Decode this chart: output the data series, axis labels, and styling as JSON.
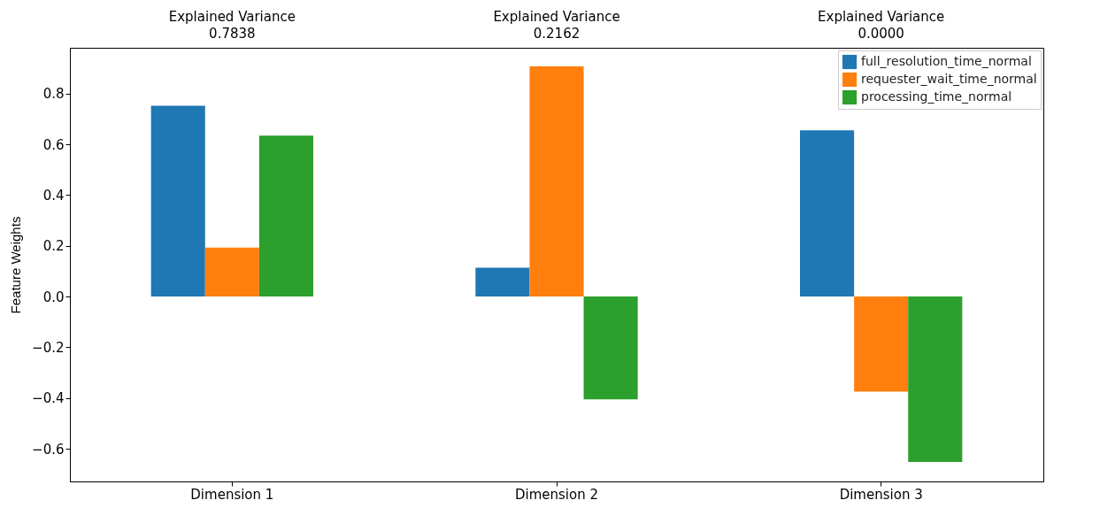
{
  "chart_data": {
    "type": "bar",
    "ylabel": "Feature Weights",
    "categories": [
      "Dimension 1",
      "Dimension 2",
      "Dimension 3"
    ],
    "series": [
      {
        "name": "full_resolution_time_normal",
        "color": "#1f77b4",
        "values": [
          0.752,
          0.114,
          0.656
        ]
      },
      {
        "name": "requester_wait_time_normal",
        "color": "#ff7f0e",
        "values": [
          0.193,
          0.908,
          -0.375
        ]
      },
      {
        "name": "processing_time_normal",
        "color": "#2ca02c",
        "values": [
          0.635,
          -0.405,
          -0.652
        ]
      }
    ],
    "ylim": [
      -0.729,
      0.981
    ],
    "yticks": [
      -0.6,
      -0.4,
      -0.2,
      {
        "value": 0,
        "label": "0.0"
      },
      0.2,
      0.4,
      0.6,
      0.8
    ],
    "grid": false,
    "legend": "top right",
    "annotations": [
      "Explained Variance\n0.7838",
      "Explained Variance\n0.2162",
      "Explained Variance\n0.0000"
    ]
  }
}
